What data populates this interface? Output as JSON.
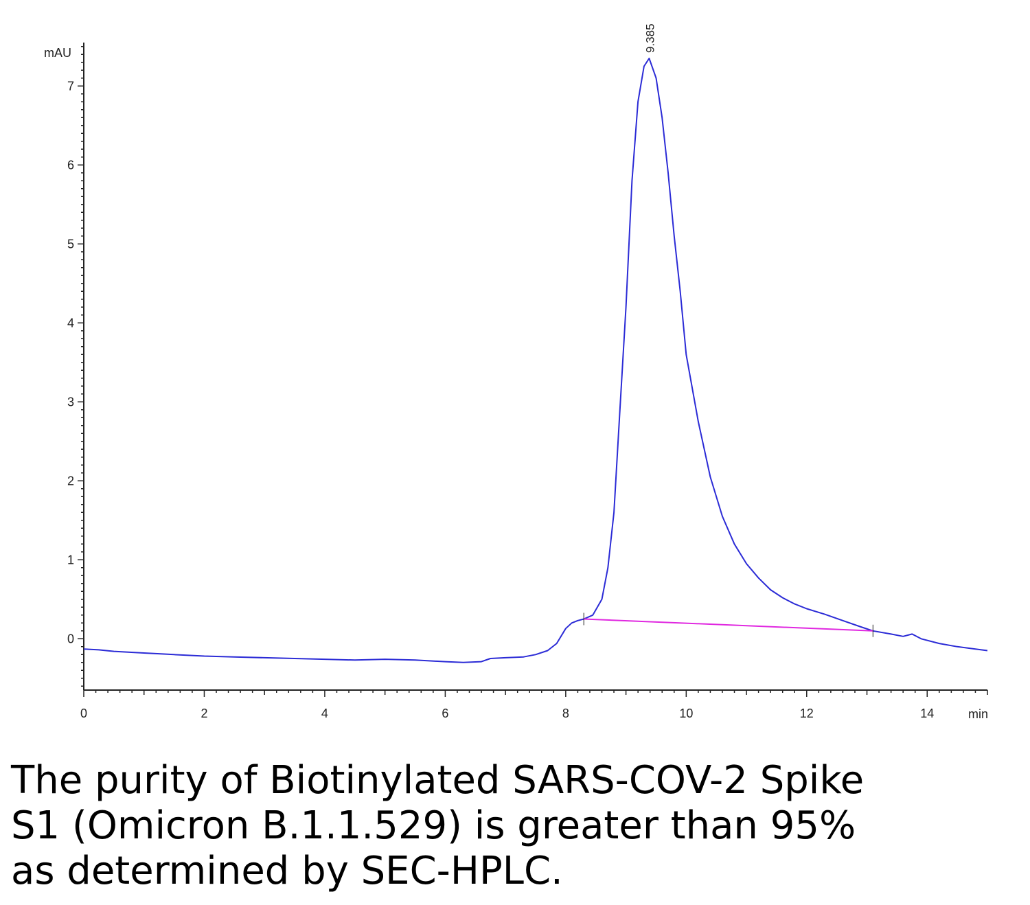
{
  "caption": {
    "lines": [
      "The purity of Biotinylated SARS-COV-2 Spike",
      "S1 (Omicron B.1.1.529) is greater than 95%",
      "as determined by SEC-HPLC."
    ]
  },
  "chart_data": {
    "type": "line",
    "title": "",
    "xlabel": "min",
    "ylabel": "mAU",
    "xlim": [
      0,
      15
    ],
    "ylim": [
      -0.65,
      7.55
    ],
    "x_ticks": [
      "0",
      "2",
      "4",
      "6",
      "8",
      "10",
      "12",
      "14"
    ],
    "y_ticks": [
      "0",
      "1",
      "2",
      "3",
      "4",
      "5",
      "6",
      "7"
    ],
    "grid": false,
    "legend": "none",
    "peak_annotation": {
      "label": "9.385",
      "x": 9.385,
      "y": 7.35
    },
    "series": [
      {
        "color": "#2b2bd6",
        "x": [
          0,
          0.25,
          0.5,
          1,
          1.5,
          2,
          2.5,
          3,
          3.5,
          4,
          4.5,
          5,
          5.5,
          6,
          6.3,
          6.6,
          6.75,
          7,
          7.3,
          7.5,
          7.7,
          7.85,
          8,
          8.1,
          8.2,
          8.3,
          8.45,
          8.6,
          8.7,
          8.8,
          8.9,
          9,
          9.1,
          9.2,
          9.3,
          9.385,
          9.5,
          9.6,
          9.7,
          9.8,
          9.9,
          10,
          10.2,
          10.4,
          10.6,
          10.8,
          11,
          11.2,
          11.4,
          11.6,
          11.8,
          12,
          12.3,
          12.6,
          12.9,
          13.1,
          13.4,
          13.6,
          13.75,
          13.9,
          14.2,
          14.5,
          14.8,
          15
        ],
        "values": [
          -0.13,
          -0.14,
          -0.16,
          -0.18,
          -0.2,
          -0.22,
          -0.23,
          -0.24,
          -0.25,
          -0.26,
          -0.27,
          -0.26,
          -0.27,
          -0.29,
          -0.3,
          -0.29,
          -0.25,
          -0.24,
          -0.23,
          -0.2,
          -0.15,
          -0.06,
          0.13,
          0.2,
          0.23,
          0.25,
          0.3,
          0.5,
          0.9,
          1.6,
          2.9,
          4.2,
          5.8,
          6.8,
          7.25,
          7.35,
          7.1,
          6.6,
          5.9,
          5.1,
          4.4,
          3.6,
          2.75,
          2.05,
          1.55,
          1.2,
          0.95,
          0.77,
          0.62,
          0.52,
          0.44,
          0.38,
          0.31,
          0.23,
          0.15,
          0.1,
          0.06,
          0.03,
          0.06,
          0.0,
          -0.06,
          -0.1,
          -0.13,
          -0.15
        ]
      },
      {
        "color": "#e028e0",
        "x": [
          8.3,
          13.1
        ],
        "values": [
          0.25,
          0.1
        ]
      }
    ]
  }
}
